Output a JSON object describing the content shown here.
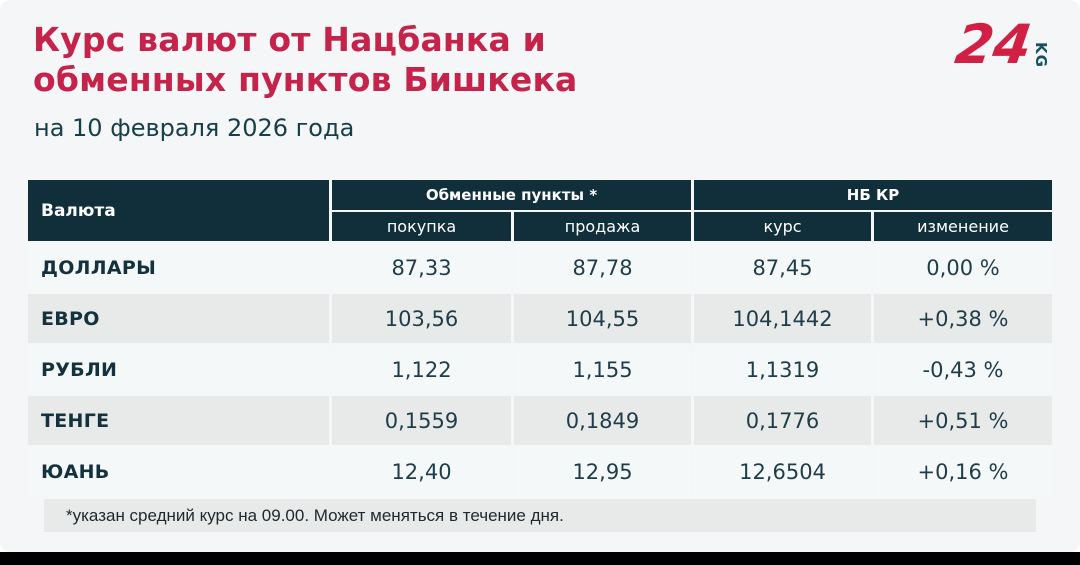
{
  "page": {
    "card_bg": "#f4f6f8",
    "accent_red": "#c5234a",
    "header_teal": "#112f3a",
    "bottom_bar_color": "#000000"
  },
  "header": {
    "title_line1": "Курс валют от Нацбанка и",
    "title_line2": "обменных пунктов Бишкека",
    "subtitle": "на 10 февраля 2026 года"
  },
  "logo": {
    "number": "24",
    "suffix": "KG",
    "number_color": "#d22045",
    "suffix_color": "#15505e"
  },
  "table": {
    "col_currency": "Валюта",
    "group_exchange": "Обменные пункты *",
    "group_nbkr": "НБ КР",
    "sub_buy": "покупка",
    "sub_sell": "продажа",
    "sub_rate": "курс",
    "sub_change": "изменение",
    "rows": [
      {
        "currency": "ДОЛЛАРЫ",
        "buy": "87,33",
        "sell": "87,78",
        "rate": "87,45",
        "change": "0,00 %"
      },
      {
        "currency": "ЕВРО",
        "buy": "103,56",
        "sell": "104,55",
        "rate": "104,1442",
        "change": "+0,38 %"
      },
      {
        "currency": "РУБЛИ",
        "buy": "1,122",
        "sell": "1,155",
        "rate": "1,1319",
        "change": "-0,43 %"
      },
      {
        "currency": "ТЕНГЕ",
        "buy": "0,1559",
        "sell": "0,1849",
        "rate": "0,1776",
        "change": "+0,51 %"
      },
      {
        "currency": "ЮАНЬ",
        "buy": "12,40",
        "sell": "12,95",
        "rate": "12,6504",
        "change": "+0,16 %"
      }
    ]
  },
  "footnote": "*указан средний курс на 09.00. Может меняться в течение дня.",
  "chart_data": {
    "type": "table",
    "title": "Курс валют от Нацбанка и обменных пунктов Бишкека",
    "subtitle": "на 10 февраля 2026 года",
    "column_groups": [
      "Валюта",
      "Обменные пункты *",
      "НБ КР"
    ],
    "columns": [
      "Валюта",
      "покупка",
      "продажа",
      "курс",
      "изменение"
    ],
    "rows": [
      [
        "ДОЛЛАРЫ",
        "87,33",
        "87,78",
        "87,45",
        "0,00 %"
      ],
      [
        "ЕВРО",
        "103,56",
        "104,55",
        "104,1442",
        "+0,38 %"
      ],
      [
        "РУБЛИ",
        "1,122",
        "1,155",
        "1,1319",
        "-0,43 %"
      ],
      [
        "ТЕНГЕ",
        "0,1559",
        "0,1849",
        "0,1776",
        "+0,51 %"
      ],
      [
        "ЮАНЬ",
        "12,40",
        "12,95",
        "12,6504",
        "+0,16 %"
      ]
    ],
    "footnote": "*указан средний курс на 09.00. Может меняться в течение дня."
  }
}
